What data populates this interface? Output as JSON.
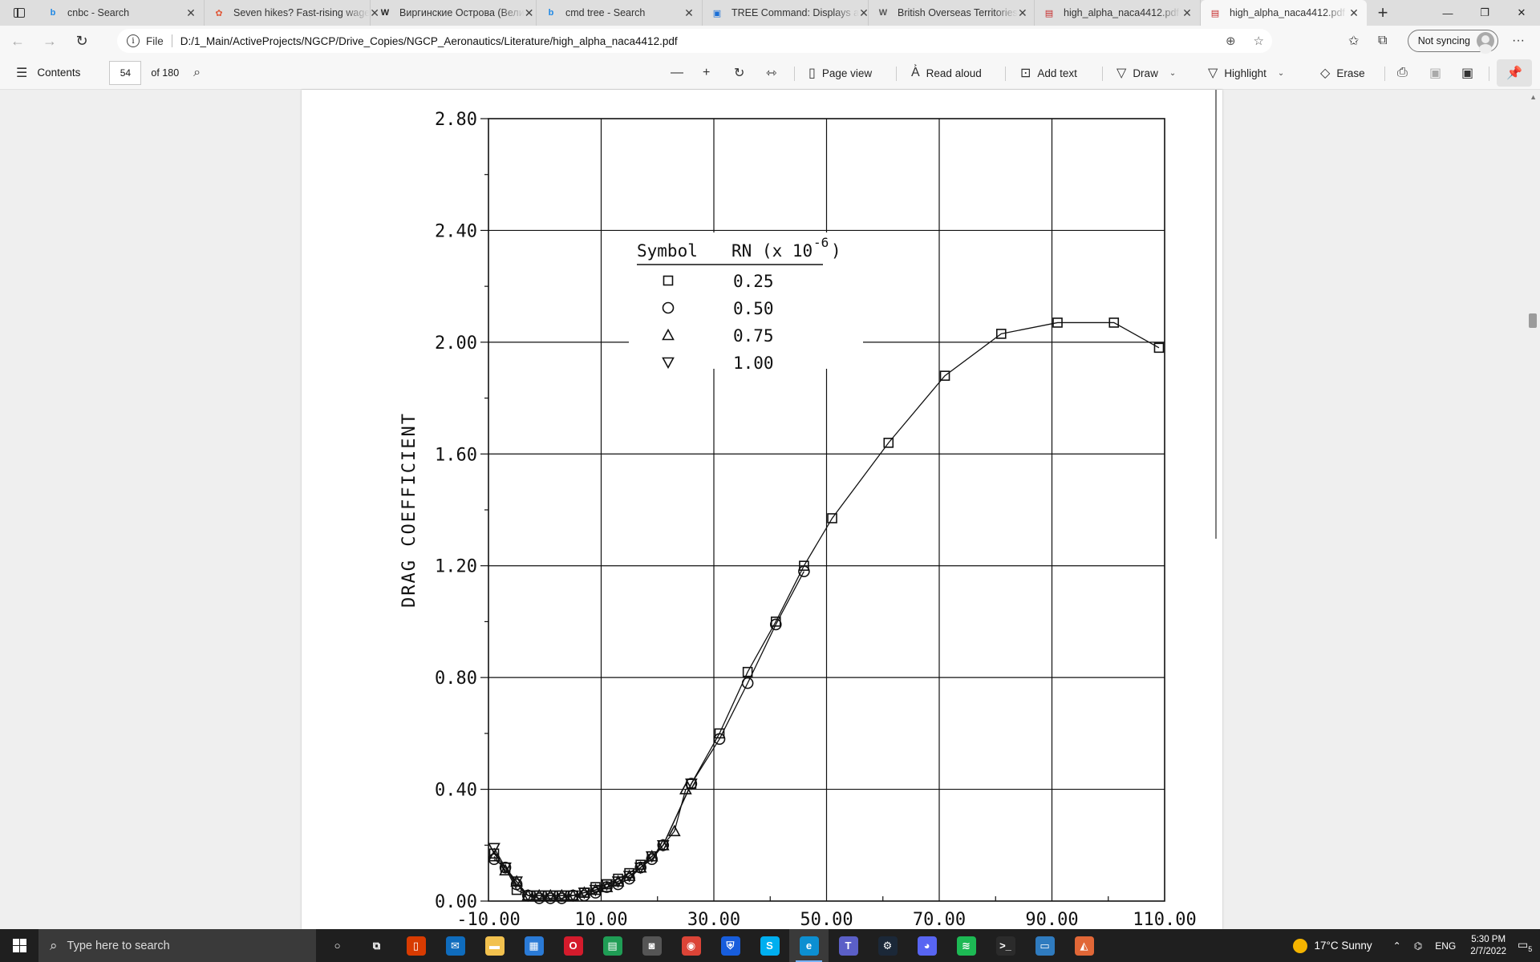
{
  "browser": {
    "tabs": [
      {
        "title": "cnbc - Search",
        "icon": "bing-icon",
        "fav_color": "#1e88e5",
        "fav_text": "b"
      },
      {
        "title": "Seven hikes? Fast-rising wage",
        "icon": "nbc-peacock-icon",
        "fav_color": "#e0593a",
        "fav_text": "✿"
      },
      {
        "title": "Виргинские Острова (Вели",
        "icon": "wikipedia-icon",
        "fav_color": "#222222",
        "fav_text": "W"
      },
      {
        "title": "cmd tree - Search",
        "icon": "bing-icon",
        "fav_color": "#1e88e5",
        "fav_text": "b"
      },
      {
        "title": "TREE Command: Displays a",
        "icon": "website-icon",
        "fav_color": "#1a6fd6",
        "fav_text": "▣"
      },
      {
        "title": "British Overseas Territories",
        "icon": "wikipedia-icon",
        "fav_color": "#555555",
        "fav_text": "W"
      },
      {
        "title": "high_alpha_naca4412.pdf",
        "icon": "pdf-icon",
        "fav_color": "#c62828",
        "fav_text": "▤"
      },
      {
        "title": "high_alpha_naca4412.pdf",
        "icon": "pdf-icon",
        "fav_color": "#c62828",
        "fav_text": "▤",
        "active": true
      }
    ],
    "address": {
      "scheme": "File",
      "url": "D:/1_Main/ActiveProjects/NGCP/Drive_Copies/NGCP_Aeronautics/Literature/high_alpha_naca4412.pdf"
    },
    "sync_label": "Not syncing"
  },
  "pdf_toolbar": {
    "contents_label": "Contents",
    "page_number": "54",
    "page_count": "of 180",
    "page_view": "Page view",
    "read_aloud": "Read aloud",
    "add_text": "Add text",
    "draw": "Draw",
    "highlight": "Highlight",
    "erase": "Erase"
  },
  "chart_data": {
    "type": "line",
    "ylabel": "DRAG COEFFICIENT",
    "xlim": [
      -10,
      110
    ],
    "ylim": [
      0,
      2.8
    ],
    "x_ticks": [
      "-10.00",
      "10.00",
      "30.00",
      "50.00",
      "70.00",
      "90.00",
      "110.00"
    ],
    "y_ticks": [
      "0.00",
      "0.40",
      "0.80",
      "1.20",
      "1.60",
      "2.00",
      "2.40",
      "2.80"
    ],
    "legend": {
      "header_symbol": "Symbol",
      "header_rn": "RN (x 10",
      "header_exp": "-6",
      "header_close": ")",
      "entries": [
        {
          "marker": "square",
          "label": "0.25"
        },
        {
          "marker": "circle",
          "label": "0.50"
        },
        {
          "marker": "triangle",
          "label": "0.75"
        },
        {
          "marker": "triangle-down",
          "label": "1.00"
        }
      ]
    },
    "series": [
      {
        "name": "0.25",
        "marker": "square",
        "x": [
          -9,
          -7,
          -5,
          -3,
          -1,
          1,
          3,
          5,
          7,
          9,
          11,
          13,
          15,
          17,
          19,
          21,
          26,
          31,
          36,
          41,
          46,
          51,
          61,
          71,
          81,
          91,
          101,
          109
        ],
        "y": [
          0.17,
          0.12,
          0.04,
          0.02,
          0.02,
          0.02,
          0.02,
          0.02,
          0.03,
          0.05,
          0.06,
          0.08,
          0.1,
          0.13,
          0.16,
          0.2,
          0.42,
          0.6,
          0.82,
          1.0,
          1.2,
          1.37,
          1.64,
          1.88,
          2.03,
          2.07,
          2.07,
          1.98
        ]
      },
      {
        "name": "0.50",
        "marker": "circle",
        "x": [
          -9,
          -7,
          -5,
          -3,
          -1,
          1,
          3,
          5,
          7,
          9,
          11,
          13,
          15,
          17,
          19,
          21,
          26,
          31,
          36,
          41,
          46
        ],
        "y": [
          0.15,
          0.12,
          0.06,
          0.02,
          0.01,
          0.01,
          0.01,
          0.02,
          0.02,
          0.03,
          0.05,
          0.06,
          0.08,
          0.12,
          0.15,
          0.2,
          0.42,
          0.58,
          0.78,
          0.99,
          1.18
        ]
      },
      {
        "name": "0.75",
        "marker": "triangle",
        "x": [
          -9,
          -7,
          -5,
          -3,
          -1,
          1,
          3,
          5,
          7,
          9,
          11,
          13,
          15,
          17,
          19,
          21,
          23,
          25
        ],
        "y": [
          0.16,
          0.11,
          0.07,
          0.02,
          0.02,
          0.02,
          0.02,
          0.02,
          0.03,
          0.04,
          0.05,
          0.07,
          0.09,
          0.12,
          0.16,
          0.2,
          0.25,
          0.4
        ]
      },
      {
        "name": "1.00",
        "marker": "triangle-down",
        "x": [
          -9,
          -7,
          -5,
          -3,
          -1,
          1,
          3,
          5,
          7,
          9,
          11,
          13,
          15,
          17,
          19,
          21,
          26
        ],
        "y": [
          0.19,
          0.12,
          0.07,
          0.02,
          0.02,
          0.02,
          0.02,
          0.02,
          0.03,
          0.04,
          0.06,
          0.07,
          0.09,
          0.12,
          0.16,
          0.2,
          0.42
        ]
      }
    ]
  },
  "taskbar": {
    "search_placeholder": "Type here to search",
    "apps": [
      {
        "name": "cortana-icon",
        "color": "transparent",
        "glyph": "○"
      },
      {
        "name": "task-view-icon",
        "color": "transparent",
        "glyph": "⧉"
      },
      {
        "name": "office-icon",
        "color": "#d83b01",
        "glyph": "▯"
      },
      {
        "name": "mail-icon",
        "color": "#0f6cbd",
        "glyph": "✉"
      },
      {
        "name": "file-explorer-icon",
        "color": "#f2c14e",
        "glyph": "▬"
      },
      {
        "name": "microsoft-store-icon",
        "color": "#2a7ad6",
        "glyph": "▦"
      },
      {
        "name": "opera-icon",
        "color": "#d41b2c",
        "glyph": "O"
      },
      {
        "name": "sheets-icon",
        "color": "#1f9d55",
        "glyph": "▤"
      },
      {
        "name": "game-controller-icon",
        "color": "#555555",
        "glyph": "◙"
      },
      {
        "name": "chrome-icon",
        "color": "#db4437",
        "glyph": "◉"
      },
      {
        "name": "bitwarden-icon",
        "color": "#175ddc",
        "glyph": "⛨"
      },
      {
        "name": "skype-icon",
        "color": "#00aff0",
        "glyph": "S"
      },
      {
        "name": "edge-icon",
        "color": "#0c8fd1",
        "glyph": "e",
        "active": true
      },
      {
        "name": "teams-icon",
        "color": "#5b5fc7",
        "glyph": "T"
      },
      {
        "name": "steam-icon",
        "color": "#1b2838",
        "glyph": "⚙"
      },
      {
        "name": "discord-icon",
        "color": "#5865f2",
        "glyph": "◕"
      },
      {
        "name": "spotify-icon",
        "color": "#1db954",
        "glyph": "≋"
      },
      {
        "name": "terminal-icon",
        "color": "#2b2b2b",
        "glyph": ">_"
      },
      {
        "name": "remote-desktop-icon",
        "color": "#2f7bbf",
        "glyph": "▭"
      },
      {
        "name": "matlab-icon",
        "color": "#e16737",
        "glyph": "◭"
      }
    ],
    "weather": "17°C  Sunny",
    "language": "ENG",
    "time": "5:30 PM",
    "date": "2/7/2022",
    "notification_count": "5"
  }
}
